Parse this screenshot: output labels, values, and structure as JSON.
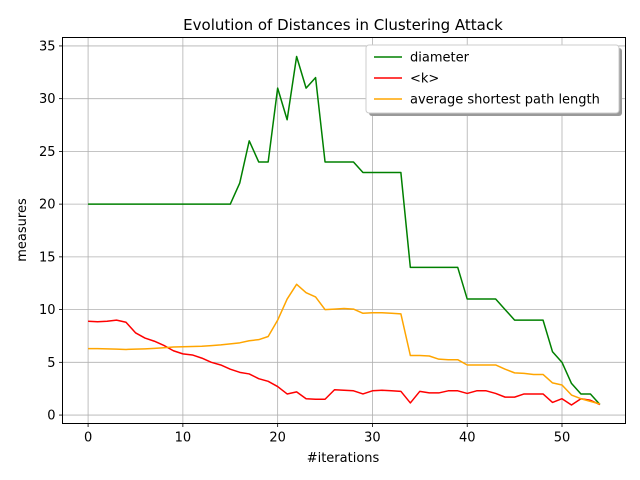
{
  "chart_data": {
    "type": "line",
    "title": "Evolution of Distances in Clustering Attack",
    "xlabel": "#iterations",
    "ylabel": "measures",
    "xlim": [
      -2.7,
      56.7
    ],
    "ylim": [
      -0.8,
      35.8
    ],
    "xticks": [
      0,
      10,
      20,
      30,
      40,
      50
    ],
    "yticks": [
      0,
      5,
      10,
      15,
      20,
      25,
      30,
      35
    ],
    "grid": true,
    "legend_position": "upper right",
    "x": [
      0,
      1,
      2,
      3,
      4,
      5,
      6,
      7,
      8,
      9,
      10,
      11,
      12,
      13,
      14,
      15,
      16,
      17,
      18,
      19,
      20,
      21,
      22,
      23,
      24,
      25,
      26,
      27,
      28,
      29,
      30,
      31,
      32,
      33,
      34,
      35,
      36,
      37,
      38,
      39,
      40,
      41,
      42,
      43,
      44,
      45,
      46,
      47,
      48,
      49,
      50,
      51,
      52,
      53,
      54
    ],
    "series": [
      {
        "name": "diameter",
        "color": "#008000",
        "values": [
          20,
          20,
          20,
          20,
          20,
          20,
          20,
          20,
          20,
          20,
          20,
          20,
          20,
          20,
          20,
          20,
          22,
          26,
          24,
          24,
          31,
          28,
          34,
          31,
          32,
          24,
          24,
          24,
          24,
          23,
          23,
          23,
          23,
          23,
          14,
          14,
          14,
          14,
          14,
          14,
          11,
          11,
          11,
          11,
          10,
          9,
          9,
          9,
          9,
          6,
          5,
          3,
          2,
          2,
          1
        ]
      },
      {
        "name": "<k>",
        "color": "#ff0000",
        "values": [
          8.9,
          8.85,
          8.9,
          9.0,
          8.8,
          7.8,
          7.3,
          7.0,
          6.6,
          6.1,
          5.8,
          5.7,
          5.4,
          5.0,
          4.75,
          4.35,
          4.05,
          3.9,
          3.45,
          3.2,
          2.7,
          2.0,
          2.2,
          1.55,
          1.5,
          1.5,
          2.4,
          2.35,
          2.3,
          2.0,
          2.3,
          2.35,
          2.3,
          2.25,
          1.15,
          2.25,
          2.1,
          2.1,
          2.3,
          2.3,
          2.05,
          2.3,
          2.3,
          2.05,
          1.7,
          1.7,
          2.0,
          2.0,
          2.0,
          1.2,
          1.55,
          0.95,
          1.55,
          1.4,
          1.0
        ]
      },
      {
        "name": "average shortest path length",
        "color": "#ffa500",
        "values": [
          6.3,
          6.3,
          6.28,
          6.25,
          6.22,
          6.25,
          6.28,
          6.32,
          6.38,
          6.45,
          6.48,
          6.5,
          6.52,
          6.58,
          6.65,
          6.75,
          6.85,
          7.05,
          7.15,
          7.45,
          9.0,
          11.0,
          12.4,
          11.6,
          11.2,
          10.0,
          10.05,
          10.1,
          10.05,
          9.65,
          9.7,
          9.7,
          9.65,
          9.6,
          5.65,
          5.65,
          5.6,
          5.3,
          5.25,
          5.25,
          4.75,
          4.75,
          4.75,
          4.75,
          4.35,
          4.0,
          3.95,
          3.85,
          3.85,
          3.05,
          2.85,
          1.9,
          1.55,
          1.3,
          1.05
        ]
      }
    ]
  }
}
